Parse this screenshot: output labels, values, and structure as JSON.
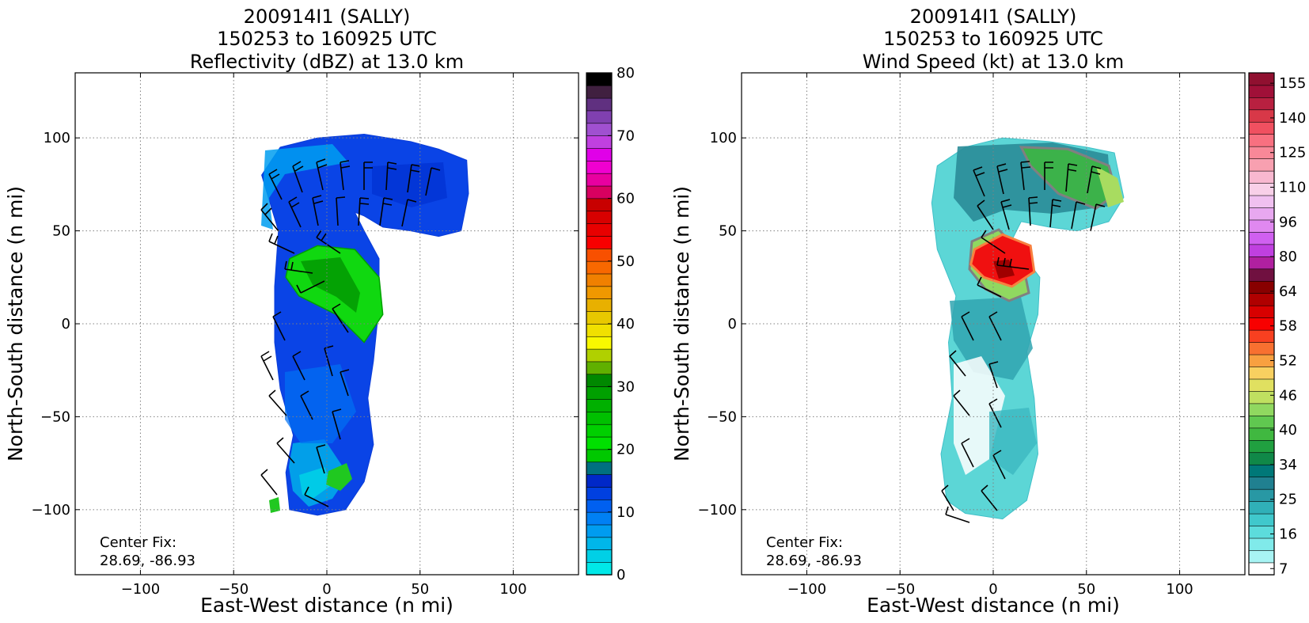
{
  "chart_data": [
    {
      "type": "heatmap",
      "title": [
        "200914I1 (SALLY)",
        "150253 to 160925 UTC",
        "Reflectivity (dBZ) at 13.0 km"
      ],
      "xlabel": "East-West distance (n mi)",
      "ylabel": "North-South distance (n mi)",
      "xlim": [
        -135,
        135
      ],
      "ylim": [
        -135,
        135
      ],
      "xticks": [
        -100,
        -50,
        0,
        50,
        100
      ],
      "yticks": [
        -100,
        -50,
        0,
        50,
        100
      ],
      "grid": true,
      "annotation": [
        "Center Fix:",
        "28.69, -86.93"
      ],
      "colorbar": {
        "min": 0,
        "max": 80,
        "ticks": [
          0,
          10,
          20,
          30,
          40,
          50,
          60,
          70,
          80
        ],
        "colors": [
          "#00e8e8",
          "#00d0e6",
          "#00b6ea",
          "#009cf0",
          "#0080f4",
          "#0060f0",
          "#0040e0",
          "#0028c8",
          "#007080",
          "#00c800",
          "#00e000",
          "#00d000",
          "#00c000",
          "#00b000",
          "#00a000",
          "#008800",
          "#60b000",
          "#b0d000",
          "#f8f800",
          "#f0e000",
          "#e8c800",
          "#e8b000",
          "#f09800",
          "#f08000",
          "#f86800",
          "#f85000",
          "#f80000",
          "#e80000",
          "#d80000",
          "#c80000",
          "#d80060",
          "#e800a0",
          "#f000d0",
          "#e000e8",
          "#c040e0",
          "#a050d0",
          "#8040b0",
          "#603080",
          "#402040",
          "#000000"
        ]
      },
      "features": [
        {
          "name": "reflectivity-field",
          "value_range_dbz": [
            0,
            30
          ],
          "outline_nmi": [
            [
              -35,
              80
            ],
            [
              -25,
              95
            ],
            [
              -5,
              100
            ],
            [
              20,
              102
            ],
            [
              45,
              98
            ],
            [
              60,
              94
            ],
            [
              75,
              88
            ],
            [
              76,
              70
            ],
            [
              72,
              50
            ],
            [
              60,
              47
            ],
            [
              45,
              50
            ],
            [
              30,
              52
            ],
            [
              20,
              58
            ],
            [
              15,
              60
            ],
            [
              20,
              50
            ],
            [
              28,
              35
            ],
            [
              28,
              10
            ],
            [
              25,
              -20
            ],
            [
              22,
              -40
            ],
            [
              25,
              -65
            ],
            [
              20,
              -85
            ],
            [
              10,
              -100
            ],
            [
              -5,
              -103
            ],
            [
              -20,
              -100
            ],
            [
              -22,
              -80
            ],
            [
              -18,
              -60
            ],
            [
              -25,
              -35
            ],
            [
              -28,
              -10
            ],
            [
              -28,
              20
            ],
            [
              -26,
              50
            ],
            [
              -32,
              70
            ]
          ]
        },
        {
          "name": "reflectivity-core-20-30dbz",
          "outline_nmi": [
            [
              -20,
              35
            ],
            [
              -5,
              42
            ],
            [
              15,
              40
            ],
            [
              28,
              25
            ],
            [
              30,
              5
            ],
            [
              20,
              -10
            ],
            [
              5,
              5
            ],
            [
              -15,
              15
            ],
            [
              -22,
              25
            ]
          ]
        }
      ]
    },
    {
      "type": "heatmap",
      "title": [
        "200914I1 (SALLY)",
        "150253 to 160925 UTC",
        "Wind Speed (kt) at 13.0 km"
      ],
      "xlabel": "East-West distance (n mi)",
      "ylabel": "North-South distance (n mi)",
      "xlim": [
        -135,
        135
      ],
      "ylim": [
        -135,
        135
      ],
      "xticks": [
        -100,
        -50,
        0,
        50,
        100
      ],
      "yticks": [
        -100,
        -50,
        0,
        50,
        100
      ],
      "grid": true,
      "annotation": [
        "Center Fix:",
        "28.69, -86.93"
      ],
      "colorbar": {
        "ticks": [
          7,
          16,
          25,
          34,
          40,
          46,
          52,
          58,
          64,
          80,
          96,
          110,
          125,
          140,
          155
        ],
        "colors": [
          "#ffffff",
          "#a8f4f4",
          "#80eaea",
          "#5cdcdc",
          "#40c8cc",
          "#30b0b8",
          "#2898a4",
          "#208090",
          "#007878",
          "#108848",
          "#20a040",
          "#40b840",
          "#60c850",
          "#90d860",
          "#c0e060",
          "#e0e060",
          "#f8d060",
          "#f8a040",
          "#f87030",
          "#f84020",
          "#f80000",
          "#d80000",
          "#b00000",
          "#880000",
          "#701040",
          "#b020a0",
          "#c040e0",
          "#d060f0",
          "#e088f0",
          "#e8a8f0",
          "#f0c0f0",
          "#f8d0e8",
          "#f8b8d0",
          "#f8a0b0",
          "#f88898",
          "#f87080",
          "#f05060",
          "#d83848",
          "#b82040",
          "#a01038",
          "#901030"
        ]
      },
      "features": [
        {
          "name": "wind-field",
          "value_range_kt": [
            7,
            64
          ],
          "outline_nmi": [
            [
              -30,
              85
            ],
            [
              -15,
              95
            ],
            [
              5,
              100
            ],
            [
              30,
              98
            ],
            [
              50,
              95
            ],
            [
              65,
              92
            ],
            [
              70,
              68
            ],
            [
              62,
              55
            ],
            [
              45,
              50
            ],
            [
              30,
              52
            ],
            [
              15,
              55
            ],
            [
              10,
              45
            ],
            [
              25,
              25
            ],
            [
              24,
              5
            ],
            [
              18,
              -15
            ],
            [
              22,
              -40
            ],
            [
              24,
              -70
            ],
            [
              18,
              -95
            ],
            [
              5,
              -105
            ],
            [
              -15,
              -102
            ],
            [
              -25,
              -95
            ],
            [
              -28,
              -70
            ],
            [
              -22,
              -40
            ],
            [
              -24,
              -10
            ],
            [
              -20,
              15
            ],
            [
              -30,
              40
            ],
            [
              -33,
              65
            ]
          ]
        },
        {
          "name": "wind-maximum-58kt",
          "outline_nmi": [
            [
              -10,
              40
            ],
            [
              5,
              48
            ],
            [
              20,
              42
            ],
            [
              22,
              28
            ],
            [
              10,
              20
            ],
            [
              -5,
              25
            ],
            [
              -12,
              32
            ]
          ]
        },
        {
          "name": "wind-band-34-46kt",
          "outline_nmi": [
            [
              15,
              95
            ],
            [
              40,
              94
            ],
            [
              62,
              85
            ],
            [
              66,
              70
            ],
            [
              55,
              62
            ],
            [
              35,
              70
            ],
            [
              20,
              85
            ]
          ]
        }
      ]
    }
  ]
}
